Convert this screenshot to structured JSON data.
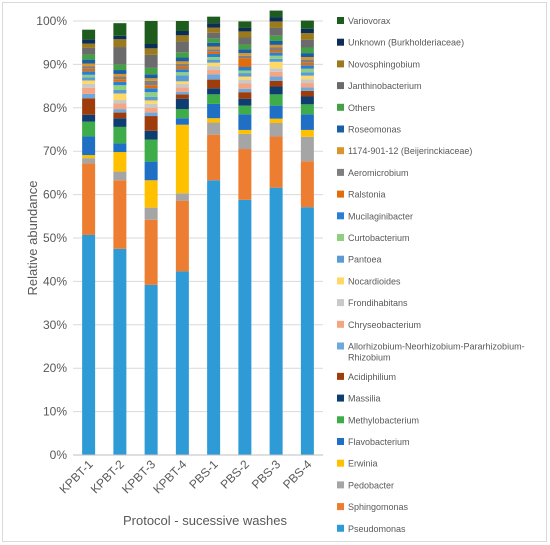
{
  "chart_data": {
    "type": "bar",
    "stacked": true,
    "xlabel": "Protocol - sucessive washes",
    "ylabel": "Relative abundance",
    "ylim": [
      0,
      100
    ],
    "yticks": [
      "0%",
      "10%",
      "20%",
      "30%",
      "40%",
      "50%",
      "60%",
      "70%",
      "80%",
      "90%",
      "100%"
    ],
    "grid": true,
    "legend_position": "right",
    "categories": [
      "KPBT-1",
      "KPBT-2",
      "KPBT-3",
      "KPBT-4",
      "PBS-1",
      "PBS-2",
      "PBS-3",
      "PBS-4"
    ],
    "series": [
      {
        "name": "Pseudomonas",
        "color": "#2e9bd6",
        "values": [
          50.7,
          47.5,
          39.2,
          42.3,
          63.3,
          58.8,
          61.6,
          57.1
        ]
      },
      {
        "name": "Sphingomonas",
        "color": "#ed7d31",
        "values": [
          16.5,
          15.8,
          15.0,
          16.3,
          10.5,
          11.7,
          11.8,
          10.6
        ]
      },
      {
        "name": "Pedobacter",
        "color": "#a5a5a5",
        "values": [
          1.2,
          2.0,
          2.8,
          1.7,
          2.8,
          3.5,
          3.1,
          5.6
        ]
      },
      {
        "name": "Erwinia",
        "color": "#ffc000",
        "values": [
          0.7,
          4.5,
          6.3,
          15.8,
          1.0,
          0.9,
          1.0,
          1.6
        ]
      },
      {
        "name": "Flavobacterium",
        "color": "#1f6fc5",
        "values": [
          4.3,
          2.0,
          4.3,
          1.5,
          3.3,
          3.6,
          3.0,
          3.6
        ]
      },
      {
        "name": "Methylobacterium",
        "color": "#3eac48",
        "values": [
          3.4,
          3.8,
          5.1,
          2.1,
          2.2,
          2.0,
          2.6,
          2.3
        ]
      },
      {
        "name": "Massilia",
        "color": "#0e3d72",
        "values": [
          1.6,
          2.0,
          2.0,
          2.4,
          1.4,
          1.6,
          1.8,
          1.8
        ]
      },
      {
        "name": "Acidiphilium",
        "color": "#9e3c0c",
        "values": [
          3.8,
          1.3,
          3.4,
          1.0,
          2.0,
          1.5,
          1.3,
          1.3
        ]
      },
      {
        "name": "Allorhizobium-Neorhizobium-Pararhizobium-Rhizobium",
        "color": "#6fa8dc",
        "values": [
          1.0,
          0.8,
          0.8,
          0.6,
          1.2,
          0.8,
          1.0,
          0.8
        ]
      },
      {
        "name": "Chryseobacterium",
        "color": "#f4a582",
        "values": [
          1.4,
          1.3,
          1.1,
          1.0,
          1.0,
          1.2,
          1.1,
          1.0
        ]
      },
      {
        "name": "Frondihabitans",
        "color": "#c9c9c9",
        "values": [
          0.9,
          0.8,
          0.9,
          0.8,
          0.9,
          0.9,
          0.8,
          0.9
        ]
      },
      {
        "name": "Nocardioides",
        "color": "#ffd966",
        "values": [
          0.8,
          1.5,
          0.8,
          0.6,
          0.8,
          0.7,
          1.5,
          0.8
        ]
      },
      {
        "name": "Pantoea",
        "color": "#5b9bd5",
        "values": [
          0.7,
          0.8,
          0.8,
          1.4,
          0.7,
          0.8,
          0.7,
          0.8
        ]
      },
      {
        "name": "Curtobacterium",
        "color": "#8fcf7f",
        "values": [
          0.6,
          1.1,
          1.1,
          0.7,
          0.6,
          0.6,
          0.7,
          0.8
        ]
      },
      {
        "name": "Mucilaginibacter",
        "color": "#2a7fd4",
        "values": [
          0.8,
          0.8,
          0.9,
          0.7,
          0.7,
          0.8,
          0.7,
          0.8
        ]
      },
      {
        "name": "Ralstonia",
        "color": "#e36c0a",
        "values": [
          0.6,
          0.6,
          0.7,
          0.6,
          0.5,
          2.0,
          0.5,
          0.6
        ]
      },
      {
        "name": "Aeromicrobium",
        "color": "#7f7f7f",
        "values": [
          0.6,
          0.6,
          1.0,
          0.6,
          0.6,
          0.6,
          0.7,
          0.7
        ]
      },
      {
        "name": "1174-901-12 (Beijerinckiaceae)",
        "color": "#d9952b",
        "values": [
          0.6,
          0.6,
          0.6,
          0.6,
          0.6,
          0.6,
          0.6,
          0.6
        ]
      },
      {
        "name": "Roseomonas",
        "color": "#1a5fa3",
        "values": [
          0.9,
          0.9,
          0.9,
          0.9,
          0.9,
          0.9,
          0.9,
          0.9
        ]
      },
      {
        "name": "Others",
        "color": "#43a047",
        "values": [
          1.2,
          1.3,
          1.5,
          1.2,
          1.0,
          1.1,
          1.2,
          1.3
        ]
      },
      {
        "name": "Janthinobacterium",
        "color": "#6b6b6b",
        "values": [
          1.5,
          4.0,
          3.0,
          2.5,
          1.3,
          1.6,
          1.8,
          1.8
        ]
      },
      {
        "name": "Novosphingobium",
        "color": "#9b7a1d",
        "values": [
          1.0,
          1.8,
          1.5,
          1.4,
          1.2,
          1.4,
          1.5,
          1.5
        ]
      },
      {
        "name": "Unknown (Burkholderiaceae)",
        "color": "#0b2e59",
        "values": [
          1.0,
          0.8,
          1.0,
          1.0,
          1.0,
          0.8,
          1.0,
          1.0
        ]
      },
      {
        "name": "Variovorax",
        "color": "#1e5c1e",
        "values": [
          2.2,
          2.9,
          5.3,
          2.3,
          1.5,
          1.5,
          1.5,
          1.9
        ]
      }
    ]
  }
}
